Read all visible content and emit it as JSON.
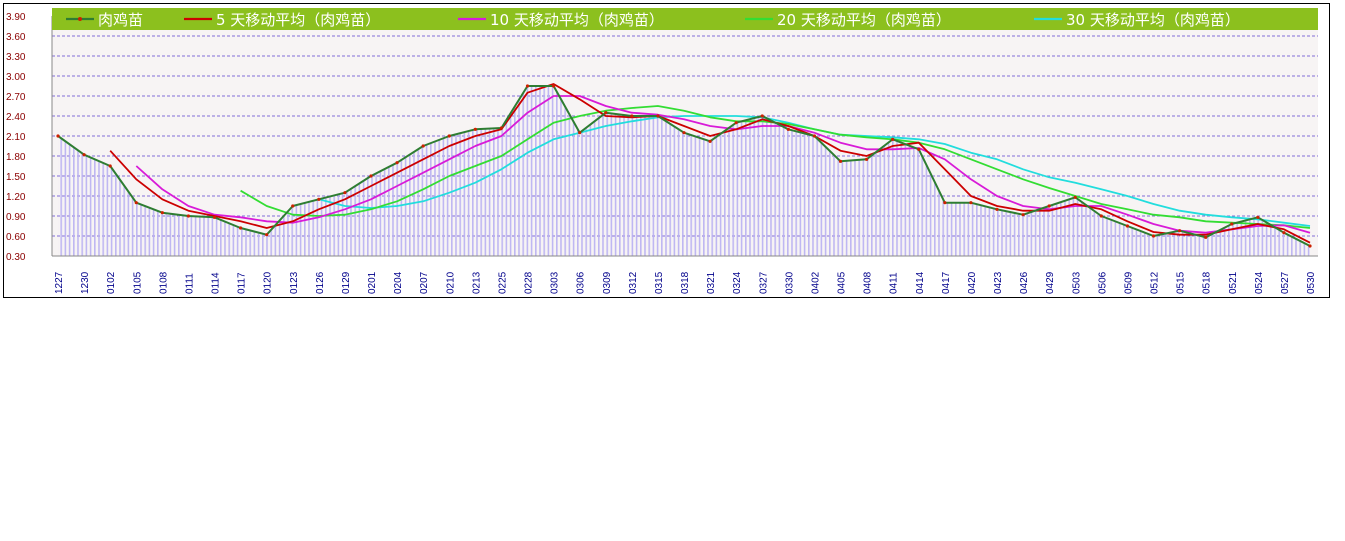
{
  "chart_data": {
    "type": "line",
    "title": "",
    "ylim": [
      0.3,
      3.9
    ],
    "yticks": [
      "3.90",
      "3.60",
      "3.30",
      "3.00",
      "2.70",
      "2.40",
      "2.10",
      "1.80",
      "1.50",
      "1.20",
      "0.90",
      "0.60",
      "0.30"
    ],
    "ytick_values": [
      3.9,
      3.6,
      3.3,
      3.0,
      2.7,
      2.4,
      2.1,
      1.8,
      1.5,
      1.2,
      0.9,
      0.6,
      0.3
    ],
    "grid": "horizontal dashed",
    "legend": "top",
    "x": [
      "1227",
      "1230",
      "0102",
      "0105",
      "0108",
      "0111",
      "0114",
      "0117",
      "0120",
      "0123",
      "0126",
      "0129",
      "0201",
      "0204",
      "0207",
      "0210",
      "0213",
      "0225",
      "0228",
      "0303",
      "0306",
      "0309",
      "0312",
      "0315",
      "0318",
      "0321",
      "0324",
      "0327",
      "0330",
      "0402",
      "0405",
      "0408",
      "0411",
      "0414",
      "0417",
      "0420",
      "0423",
      "0426",
      "0429",
      "0503",
      "0506",
      "0509",
      "0512",
      "0515",
      "0518",
      "0521",
      "0524",
      "0527",
      "0530"
    ],
    "series": [
      {
        "name": "肉鸡苗",
        "color": "#2e7d32",
        "values": [
          2.1,
          1.82,
          1.65,
          1.1,
          0.95,
          0.9,
          0.88,
          0.72,
          0.62,
          1.05,
          1.15,
          1.25,
          1.5,
          1.7,
          1.95,
          2.1,
          2.2,
          2.22,
          2.85,
          2.85,
          2.15,
          2.45,
          2.4,
          2.4,
          2.15,
          2.02,
          2.3,
          2.4,
          2.2,
          2.1,
          1.72,
          1.75,
          2.05,
          1.9,
          1.1,
          1.1,
          1.0,
          0.92,
          1.05,
          1.18,
          0.9,
          0.75,
          0.6,
          0.68,
          0.58,
          0.78,
          0.88,
          0.65,
          0.45
        ]
      },
      {
        "name": "5  天移动平均（肉鸡苗）",
        "color": "#cc0000",
        "values": [
          null,
          null,
          1.88,
          1.45,
          1.15,
          0.98,
          0.9,
          0.82,
          0.72,
          0.82,
          1.0,
          1.15,
          1.35,
          1.55,
          1.75,
          1.95,
          2.1,
          2.2,
          2.75,
          2.88,
          2.65,
          2.4,
          2.38,
          2.4,
          2.25,
          2.1,
          2.2,
          2.35,
          2.25,
          2.1,
          1.88,
          1.8,
          1.95,
          2.0,
          1.6,
          1.2,
          1.05,
          0.98,
          0.98,
          1.08,
          1.0,
          0.82,
          0.66,
          0.62,
          0.62,
          0.7,
          0.78,
          0.7,
          0.5
        ]
      },
      {
        "name": "10  天移动平均（肉鸡苗）",
        "color": "#d81bd8",
        "values": [
          null,
          null,
          null,
          1.65,
          1.3,
          1.05,
          0.92,
          0.88,
          0.82,
          0.8,
          0.88,
          1.0,
          1.15,
          1.35,
          1.55,
          1.75,
          1.95,
          2.1,
          2.45,
          2.7,
          2.7,
          2.55,
          2.45,
          2.42,
          2.35,
          2.25,
          2.2,
          2.25,
          2.25,
          2.15,
          2.0,
          1.9,
          1.9,
          1.92,
          1.75,
          1.45,
          1.2,
          1.05,
          1.0,
          1.05,
          1.05,
          0.92,
          0.78,
          0.68,
          0.65,
          0.7,
          0.75,
          0.76,
          0.65
        ]
      },
      {
        "name": "20  天移动平均（肉鸡苗）",
        "color": "#33dd33",
        "values": [
          null,
          null,
          null,
          null,
          null,
          null,
          null,
          1.28,
          1.05,
          0.92,
          0.9,
          0.92,
          1.0,
          1.12,
          1.3,
          1.5,
          1.65,
          1.8,
          2.05,
          2.3,
          2.4,
          2.48,
          2.52,
          2.55,
          2.48,
          2.38,
          2.32,
          2.32,
          2.28,
          2.2,
          2.12,
          2.08,
          2.05,
          2.0,
          1.9,
          1.75,
          1.6,
          1.45,
          1.32,
          1.2,
          1.08,
          1.0,
          0.92,
          0.88,
          0.82,
          0.8,
          0.78,
          0.76,
          0.72
        ]
      },
      {
        "name": "30  天移动平均（肉鸡苗）",
        "color": "#22dddd",
        "values": [
          null,
          null,
          null,
          null,
          null,
          null,
          null,
          null,
          null,
          null,
          1.15,
          1.05,
          1.02,
          1.05,
          1.12,
          1.25,
          1.4,
          1.6,
          1.85,
          2.05,
          2.15,
          2.25,
          2.32,
          2.38,
          2.4,
          2.4,
          2.4,
          2.38,
          2.3,
          2.2,
          2.12,
          2.1,
          2.08,
          2.05,
          1.98,
          1.85,
          1.75,
          1.6,
          1.48,
          1.4,
          1.3,
          1.2,
          1.08,
          0.98,
          0.92,
          0.88,
          0.85,
          0.8,
          0.75
        ]
      }
    ]
  }
}
